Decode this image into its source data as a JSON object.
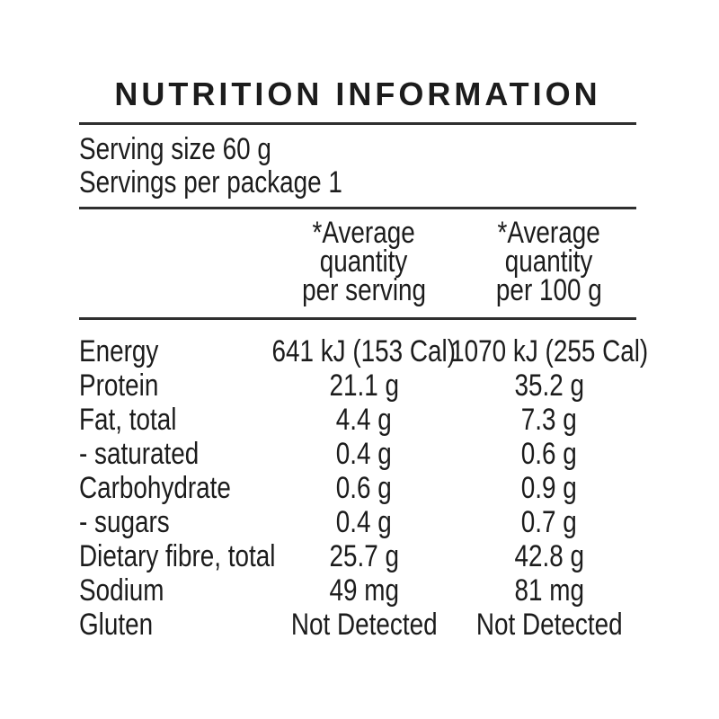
{
  "colors": {
    "background": "#ffffff",
    "text": "#1c1c1c",
    "rule": "#2f2f2f"
  },
  "label": {
    "title": "NUTRITION INFORMATION",
    "serving_info": {
      "serving_size": "Serving size 60 g",
      "servings_per_package": "Servings per package 1"
    },
    "column_headers": {
      "per_serving": [
        "*Average",
        "quantity",
        "per serving"
      ],
      "per_100g": [
        "*Average",
        "quantity",
        "per 100 g"
      ]
    },
    "rows": [
      {
        "nutrient": "Energy",
        "per_serving": "641 kJ (153 Cal)",
        "per_100g": "1070 kJ (255 Cal)"
      },
      {
        "nutrient": "Protein",
        "per_serving": "21.1 g",
        "per_100g": "35.2 g"
      },
      {
        "nutrient": "Fat, total",
        "per_serving": "4.4 g",
        "per_100g": "7.3 g"
      },
      {
        "nutrient": "- saturated",
        "per_serving": "0.4 g",
        "per_100g": "0.6 g"
      },
      {
        "nutrient": "Carbohydrate",
        "per_serving": "0.6 g",
        "per_100g": "0.9 g"
      },
      {
        "nutrient": "- sugars",
        "per_serving": "0.4 g",
        "per_100g": "0.7 g"
      },
      {
        "nutrient": "Dietary fibre, total",
        "per_serving": "25.7 g",
        "per_100g": "42.8 g"
      },
      {
        "nutrient": "Sodium",
        "per_serving": "49 mg",
        "per_100g": "81 mg"
      },
      {
        "nutrient": "Gluten",
        "per_serving": "Not Detected",
        "per_100g": "Not Detected"
      }
    ]
  }
}
